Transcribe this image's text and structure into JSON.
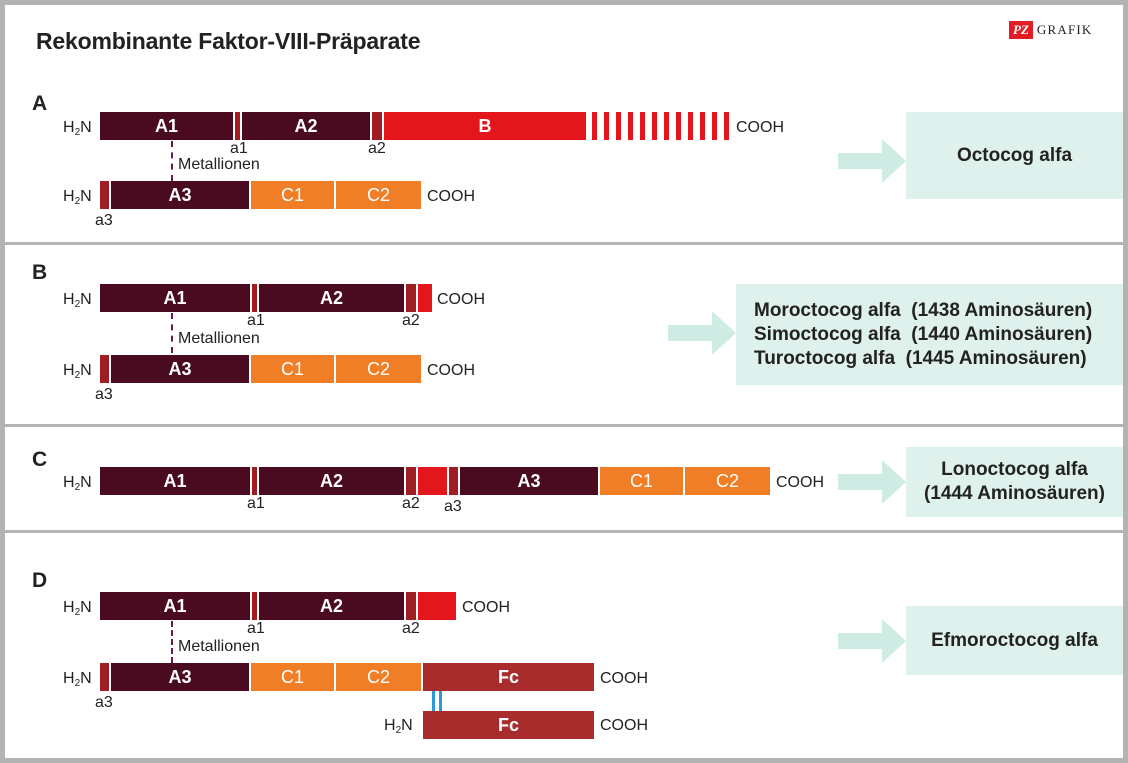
{
  "title": "Rekombinante Faktor-VIII-Präparate",
  "logo": {
    "mark": "PZ",
    "text": "GRAFIK"
  },
  "terminals": {
    "nh": "H",
    "nh_sub": "2",
    "nh_n": "N",
    "cooh": "COOH"
  },
  "domains": {
    "a1": "A1",
    "a2": "A2",
    "a3": "A3",
    "b": "B",
    "c1": "C1",
    "c2": "C2",
    "fc": "Fc",
    "small_a1": "a1",
    "small_a2": "a2",
    "small_a3": "a3"
  },
  "metal": "Metallionen",
  "panels": {
    "a": {
      "letter": "A",
      "products": [
        "Octocog alfa"
      ]
    },
    "b": {
      "letter": "B",
      "products": [
        "Moroctocog alfa  (1438 Aminosäuren)",
        "Simoctocog alfa  (1440 Aminosäuren)",
        "Turoctocog alfa  (1445 Aminosäuren)"
      ]
    },
    "c": {
      "letter": "C",
      "products": [
        "Lonoctocog alfa",
        "(1444 Aminosäuren)"
      ]
    },
    "d": {
      "letter": "D",
      "products": [
        "Efmoroctocog alfa"
      ]
    }
  },
  "colors": {
    "heavy_domain": "#4a0a20",
    "acidic": "#a01e22",
    "b_domain": "#e3161e",
    "c_domain": "#f07e26",
    "fc": "#a82c2c",
    "product_box": "#dff1ec",
    "arrow": "#cfece4",
    "disulfide": "#2a9bd7"
  }
}
